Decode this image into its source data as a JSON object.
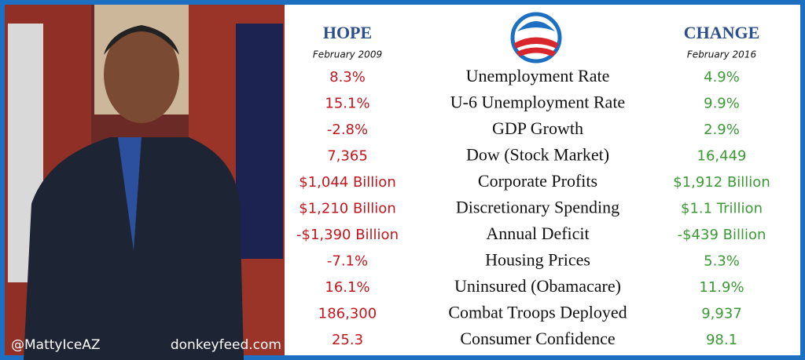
{
  "header": {
    "hope": {
      "title": "HOPE",
      "date": "February 2009"
    },
    "change": {
      "title": "CHANGE",
      "date": "February 2016"
    }
  },
  "rows": [
    {
      "label": "Unemployment Rate",
      "hope": "8.3%",
      "change": "4.9%"
    },
    {
      "label": "U-6 Unemployment Rate",
      "hope": "15.1%",
      "change": "9.9%"
    },
    {
      "label": "GDP Growth",
      "hope": "-2.8%",
      "change": "2.9%"
    },
    {
      "label": "Dow (Stock Market)",
      "hope": "7,365",
      "change": "16,449"
    },
    {
      "label": "Corporate Profits",
      "hope": "$1,044 Billion",
      "change": "$1,912 Billion"
    },
    {
      "label": "Discretionary Spending",
      "hope": "$1,210 Billion",
      "change": "$1.1 Trillion"
    },
    {
      "label": "Annual Deficit",
      "hope": "-$1,390 Billion",
      "change": "-$439 Billion"
    },
    {
      "label": "Housing Prices",
      "hope": "-7.1%",
      "change": "5.3%"
    },
    {
      "label": "Uninsured (Obamacare)",
      "hope": "16.1%",
      "change": "11.9%"
    },
    {
      "label": "Combat Troops Deployed",
      "hope": "186,300",
      "change": "9,937"
    },
    {
      "label": "Consumer Confidence",
      "hope": "25.3",
      "change": "98.1"
    }
  ],
  "watermarks": {
    "left": "@MattyIceAZ",
    "right": "donkeyfeed.com"
  }
}
